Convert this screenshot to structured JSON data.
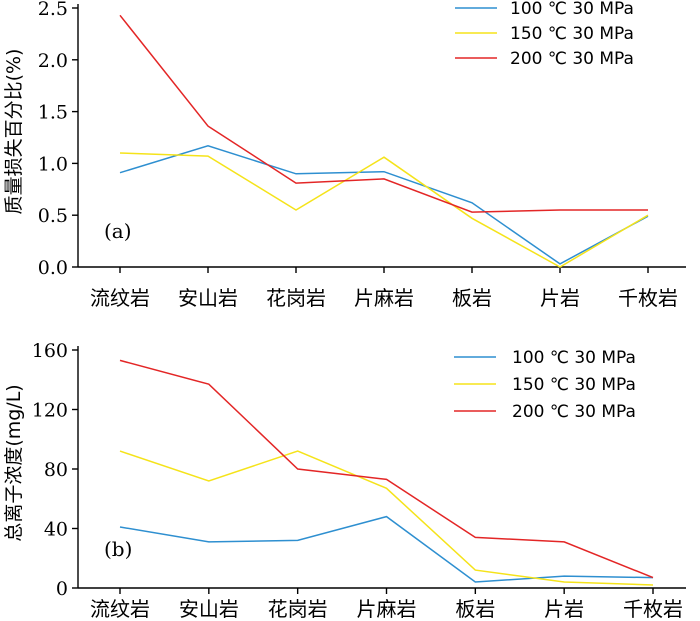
{
  "chart_data": [
    {
      "type": "line",
      "panel_label": "(a)",
      "ylabel": "质量损失百分比(%)",
      "categories": [
        "流纹岩",
        "安山岩",
        "花岗岩",
        "片麻岩",
        "板岩",
        "片岩",
        "千枚岩"
      ],
      "ylim": [
        0,
        2.5
      ],
      "yticks": [
        "0.0",
        "0.5",
        "1.0",
        "1.5",
        "2.0",
        "2.5"
      ],
      "legend_position": "top-right",
      "series": [
        {
          "name": "100 ℃ 30 MPa",
          "color": "#2e8fd0",
          "values": [
            0.91,
            1.17,
            0.9,
            0.92,
            0.62,
            0.03,
            0.49
          ]
        },
        {
          "name": "150 ℃ 30 MPa",
          "color": "#f5e31a",
          "values": [
            1.1,
            1.07,
            0.55,
            1.06,
            0.47,
            0.0,
            0.5
          ]
        },
        {
          "name": "200 ℃ 30 MPa",
          "color": "#e32626",
          "values": [
            2.43,
            1.36,
            0.81,
            0.85,
            0.53,
            0.55,
            0.55
          ]
        }
      ]
    },
    {
      "type": "line",
      "panel_label": "(b)",
      "ylabel": "总离子浓度(mg/L)",
      "categories": [
        "流纹岩",
        "安山岩",
        "花岗岩",
        "片麻岩",
        "板岩",
        "片岩",
        "千枚岩"
      ],
      "ylim": [
        0,
        160
      ],
      "yticks": [
        "0",
        "40",
        "80",
        "120",
        "160"
      ],
      "legend_position": "top-right",
      "series": [
        {
          "name": "100 ℃ 30 MPa",
          "color": "#2e8fd0",
          "values": [
            41,
            31,
            32,
            48,
            4,
            8,
            7
          ]
        },
        {
          "name": "150 ℃ 30 MPa",
          "color": "#f5e31a",
          "values": [
            92,
            72,
            92,
            67,
            12,
            4,
            2
          ]
        },
        {
          "name": "200 ℃ 30 MPa",
          "color": "#e32626",
          "values": [
            153,
            137,
            80,
            73,
            34,
            31,
            7
          ]
        }
      ]
    }
  ]
}
